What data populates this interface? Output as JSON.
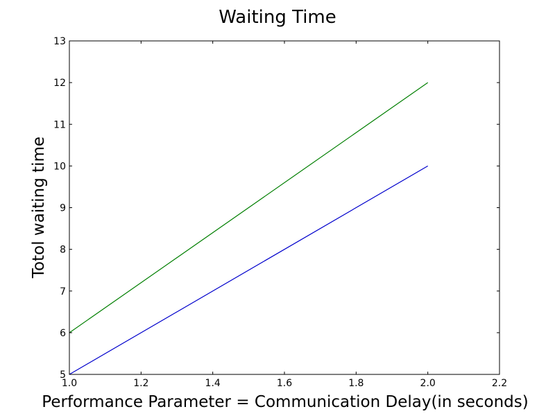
{
  "chart_data": {
    "type": "line",
    "title": "Waiting Time",
    "xlabel": "Performance Parameter = Communication Delay(in seconds)",
    "ylabel": "Totol waiting time",
    "xlim": [
      1.0,
      2.2
    ],
    "ylim": [
      5,
      13
    ],
    "x_ticks": [
      "1.0",
      "1.2",
      "1.4",
      "1.6",
      "1.8",
      "2.0",
      "2.2"
    ],
    "y_ticks": [
      "5",
      "6",
      "7",
      "8",
      "9",
      "10",
      "11",
      "12",
      "13"
    ],
    "grid": false,
    "series": [
      {
        "x": [
          1.0,
          2.0
        ],
        "values": [
          5,
          10
        ],
        "color": "#0000cc"
      },
      {
        "x": [
          1.0,
          2.0
        ],
        "values": [
          6,
          12
        ],
        "color": "#007f00"
      }
    ]
  }
}
